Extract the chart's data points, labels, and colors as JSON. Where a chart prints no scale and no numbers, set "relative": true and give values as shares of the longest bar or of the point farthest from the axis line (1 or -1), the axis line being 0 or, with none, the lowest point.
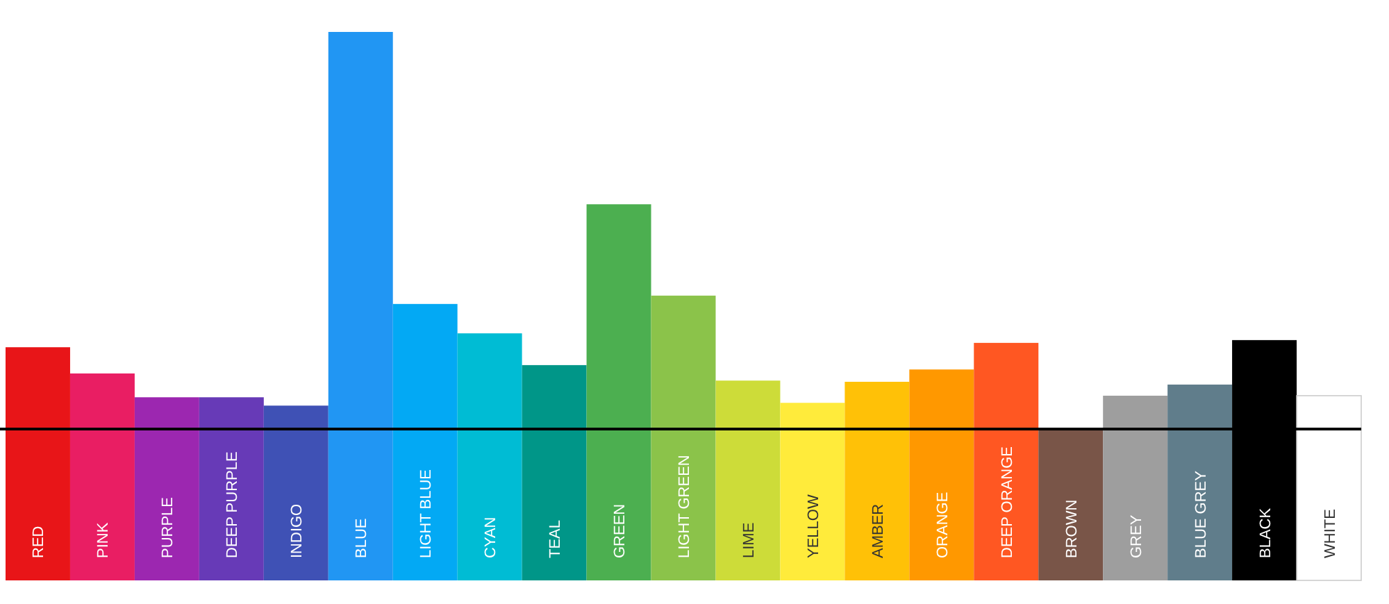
{
  "chart_data": {
    "type": "bar",
    "relative": true,
    "categories": [
      "RED",
      "PINK",
      "PURPLE",
      "DEEP PURPLE",
      "INDIGO",
      "BLUE",
      "LIGHT BLUE",
      "CYAN",
      "TEAL",
      "GREEN",
      "LIGHT GREEN",
      "LIME",
      "YELLOW",
      "AMBER",
      "ORANGE",
      "DEEP ORANGE",
      "BROWN",
      "GREY",
      "BLUE GREY",
      "BLACK",
      "WHITE"
    ],
    "values": [
      0.206,
      0.14,
      0.08,
      0.08,
      0.059,
      1,
      0.315,
      0.241,
      0.161,
      0.566,
      0.336,
      0.122,
      0.066,
      0.119,
      0.15,
      0.217,
      0,
      0.084,
      0.112,
      0.224,
      0.084
    ],
    "colors": [
      "#e81518",
      "#e91e63",
      "#9c27b0",
      "#673ab7",
      "#3f51b5",
      "#2196f3",
      "#03a9f4",
      "#00bcd4",
      "#009688",
      "#4caf50",
      "#8bc34a",
      "#cddc39",
      "#ffeb3b",
      "#ffc107",
      "#ff9800",
      "#ff5722",
      "#795548",
      "#9e9e9e",
      "#607d8b",
      "#000000",
      "#ffffff"
    ]
  }
}
